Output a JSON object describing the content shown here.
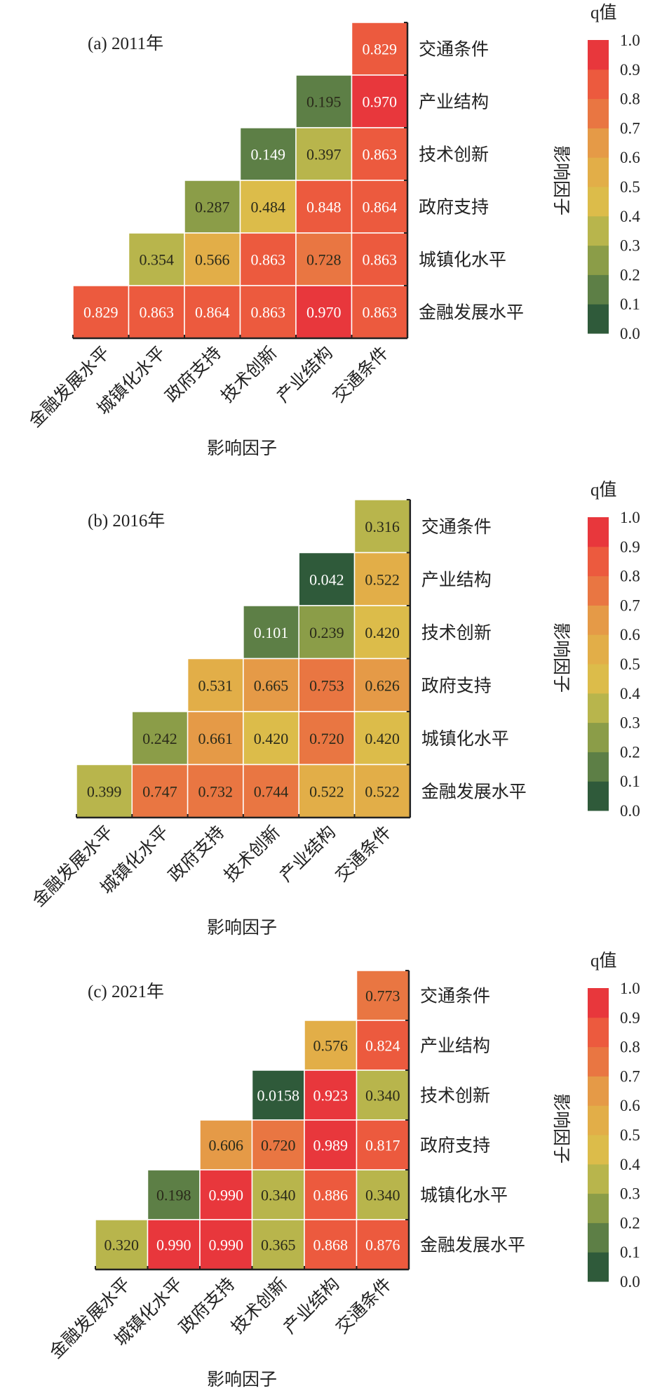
{
  "chart_data": [
    {
      "type": "heatmap",
      "title": "(a) 2011年",
      "xlabel": "影响因子",
      "ylabel": "影响因子",
      "colorbar_label": "q值",
      "colorbar_ticks": [
        "0.0",
        "0.1",
        "0.2",
        "0.3",
        "0.4",
        "0.5",
        "0.6",
        "0.7",
        "0.8",
        "0.9",
        "1.0"
      ],
      "x_categories": [
        "金融发展水平",
        "城镇化水平",
        "政府支持",
        "技术创新",
        "产业结构",
        "交通条件"
      ],
      "y_categories": [
        "交通条件",
        "产业结构",
        "技术创新",
        "政府支持",
        "城镇化水平",
        "金融发展水平"
      ],
      "rows": [
        [
          "0.829"
        ],
        [
          "0.195",
          "0.970"
        ],
        [
          "0.149",
          "0.397",
          "0.863"
        ],
        [
          "0.287",
          "0.484",
          "0.848",
          "0.864"
        ],
        [
          "0.354",
          "0.566",
          "0.863",
          "0.728",
          "0.863"
        ],
        [
          "0.829",
          "0.863",
          "0.864",
          "0.863",
          "0.970",
          "0.863"
        ]
      ]
    },
    {
      "type": "heatmap",
      "title": "(b) 2016年",
      "xlabel": "影响因子",
      "ylabel": "影响因子",
      "colorbar_label": "q值",
      "colorbar_ticks": [
        "0.0",
        "0.1",
        "0.2",
        "0.3",
        "0.4",
        "0.5",
        "0.6",
        "0.7",
        "0.8",
        "0.9",
        "1.0"
      ],
      "x_categories": [
        "金融发展水平",
        "城镇化水平",
        "政府支持",
        "技术创新",
        "产业结构",
        "交通条件"
      ],
      "y_categories": [
        "交通条件",
        "产业结构",
        "技术创新",
        "政府支持",
        "城镇化水平",
        "金融发展水平"
      ],
      "rows": [
        [
          "0.316"
        ],
        [
          "0.042",
          "0.522"
        ],
        [
          "0.101",
          "0.239",
          "0.420"
        ],
        [
          "0.531",
          "0.665",
          "0.753",
          "0.626"
        ],
        [
          "0.242",
          "0.661",
          "0.420",
          "0.720",
          "0.420"
        ],
        [
          "0.399",
          "0.747",
          "0.732",
          "0.744",
          "0.522",
          "0.522"
        ]
      ]
    },
    {
      "type": "heatmap",
      "title": "(c) 2021年",
      "xlabel": "影响因子",
      "ylabel": "影响因子",
      "colorbar_label": "q值",
      "colorbar_ticks": [
        "0.0",
        "0.1",
        "0.2",
        "0.3",
        "0.4",
        "0.5",
        "0.6",
        "0.7",
        "0.8",
        "0.9",
        "1.0"
      ],
      "x_categories": [
        "金融发展水平",
        "城镇化水平",
        "政府支持",
        "技术创新",
        "产业结构",
        "交通条件"
      ],
      "y_categories": [
        "交通条件",
        "产业结构",
        "技术创新",
        "政府支持",
        "城镇化水平",
        "金融发展水平"
      ],
      "rows": [
        [
          "0.773"
        ],
        [
          "0.576",
          "0.824"
        ],
        [
          "0.0158",
          "0.923",
          "0.340"
        ],
        [
          "0.606",
          "0.720",
          "0.989",
          "0.817"
        ],
        [
          "0.198",
          "0.990",
          "0.340",
          "0.886",
          "0.340"
        ],
        [
          "0.320",
          "0.990",
          "0.990",
          "0.365",
          "0.868",
          "0.876"
        ]
      ]
    }
  ],
  "colors": {
    "bins": [
      "#2f5a3a",
      "#5d7f46",
      "#8b9d48",
      "#b8b54c",
      "#dcbc4a",
      "#e2ae48",
      "#e59a47",
      "#e97642",
      "#ec5a3e",
      "#e8373c"
    ],
    "text_dark": "#2a2a1a",
    "text_light": "#ffffff",
    "axis": "#222222"
  }
}
